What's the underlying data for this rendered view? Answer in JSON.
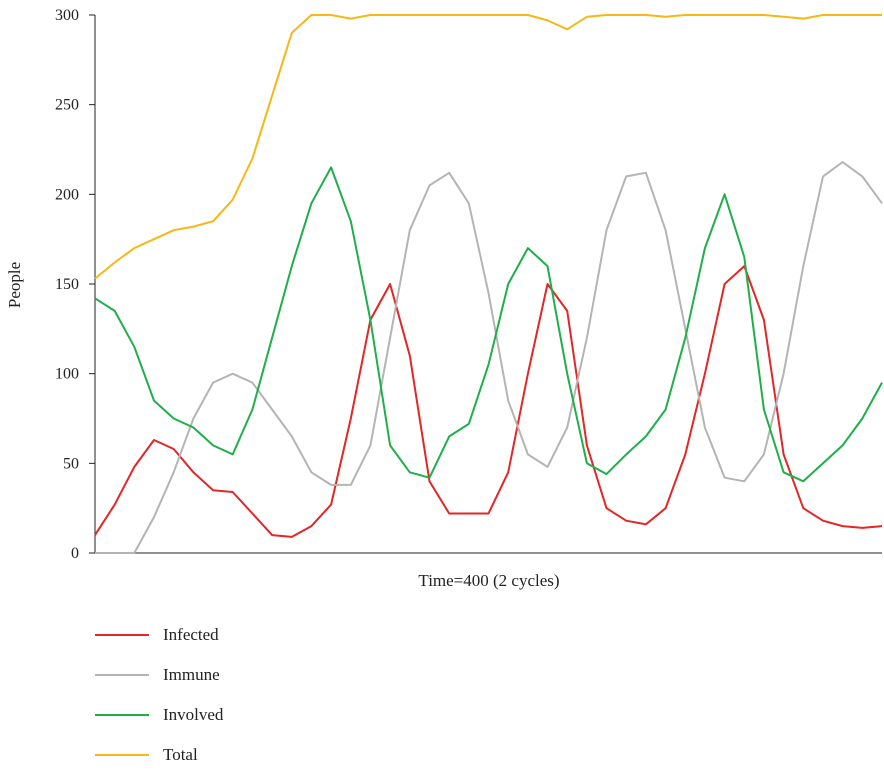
{
  "chart_data": {
    "type": "line",
    "xlabel": "Time=400 (2 cycles)",
    "ylabel": "People",
    "xlim": [
      0,
      400
    ],
    "ylim": [
      0,
      300
    ],
    "yticks": [
      0,
      50,
      100,
      150,
      200,
      250,
      300
    ],
    "grid": false,
    "legend_position": "bottom-left",
    "x": [
      0,
      10,
      20,
      30,
      40,
      50,
      60,
      70,
      80,
      90,
      100,
      110,
      120,
      130,
      140,
      150,
      160,
      170,
      180,
      190,
      200,
      210,
      220,
      230,
      240,
      250,
      260,
      270,
      280,
      290,
      300,
      310,
      320,
      330,
      340,
      350,
      360,
      370,
      380,
      390,
      400
    ],
    "series": [
      {
        "name": "Infected",
        "color": "#e32626",
        "values": [
          10,
          27,
          48,
          63,
          58,
          45,
          35,
          34,
          22,
          10,
          9,
          15,
          27,
          75,
          130,
          150,
          110,
          40,
          22,
          22,
          22,
          45,
          100,
          150,
          135,
          60,
          25,
          18,
          16,
          25,
          55,
          100,
          150,
          160,
          130,
          55,
          25,
          18,
          15,
          14,
          15
        ]
      },
      {
        "name": "Immune",
        "color": "#b4b4b4",
        "values": [
          0,
          0,
          0,
          20,
          45,
          75,
          95,
          100,
          95,
          80,
          65,
          45,
          38,
          38,
          60,
          120,
          180,
          205,
          212,
          195,
          145,
          85,
          55,
          48,
          70,
          120,
          180,
          210,
          212,
          180,
          125,
          70,
          42,
          40,
          55,
          100,
          160,
          210,
          218,
          210,
          195
        ]
      },
      {
        "name": "Involved",
        "color": "#1faf4a",
        "values": [
          142,
          135,
          115,
          85,
          75,
          70,
          60,
          55,
          80,
          120,
          160,
          195,
          215,
          185,
          130,
          60,
          45,
          42,
          65,
          72,
          105,
          150,
          170,
          160,
          100,
          50,
          44,
          55,
          65,
          80,
          120,
          170,
          200,
          165,
          80,
          45,
          40,
          50,
          60,
          75,
          95
        ]
      },
      {
        "name": "Total",
        "color": "#f7b716",
        "values": [
          153,
          162,
          170,
          175,
          180,
          182,
          185,
          197,
          220,
          255,
          290,
          300,
          300,
          298,
          300,
          300,
          300,
          300,
          300,
          300,
          300,
          300,
          300,
          297,
          292,
          299,
          300,
          300,
          300,
          299,
          300,
          300,
          300,
          300,
          300,
          299,
          298,
          300,
          300,
          300,
          300
        ]
      }
    ]
  }
}
